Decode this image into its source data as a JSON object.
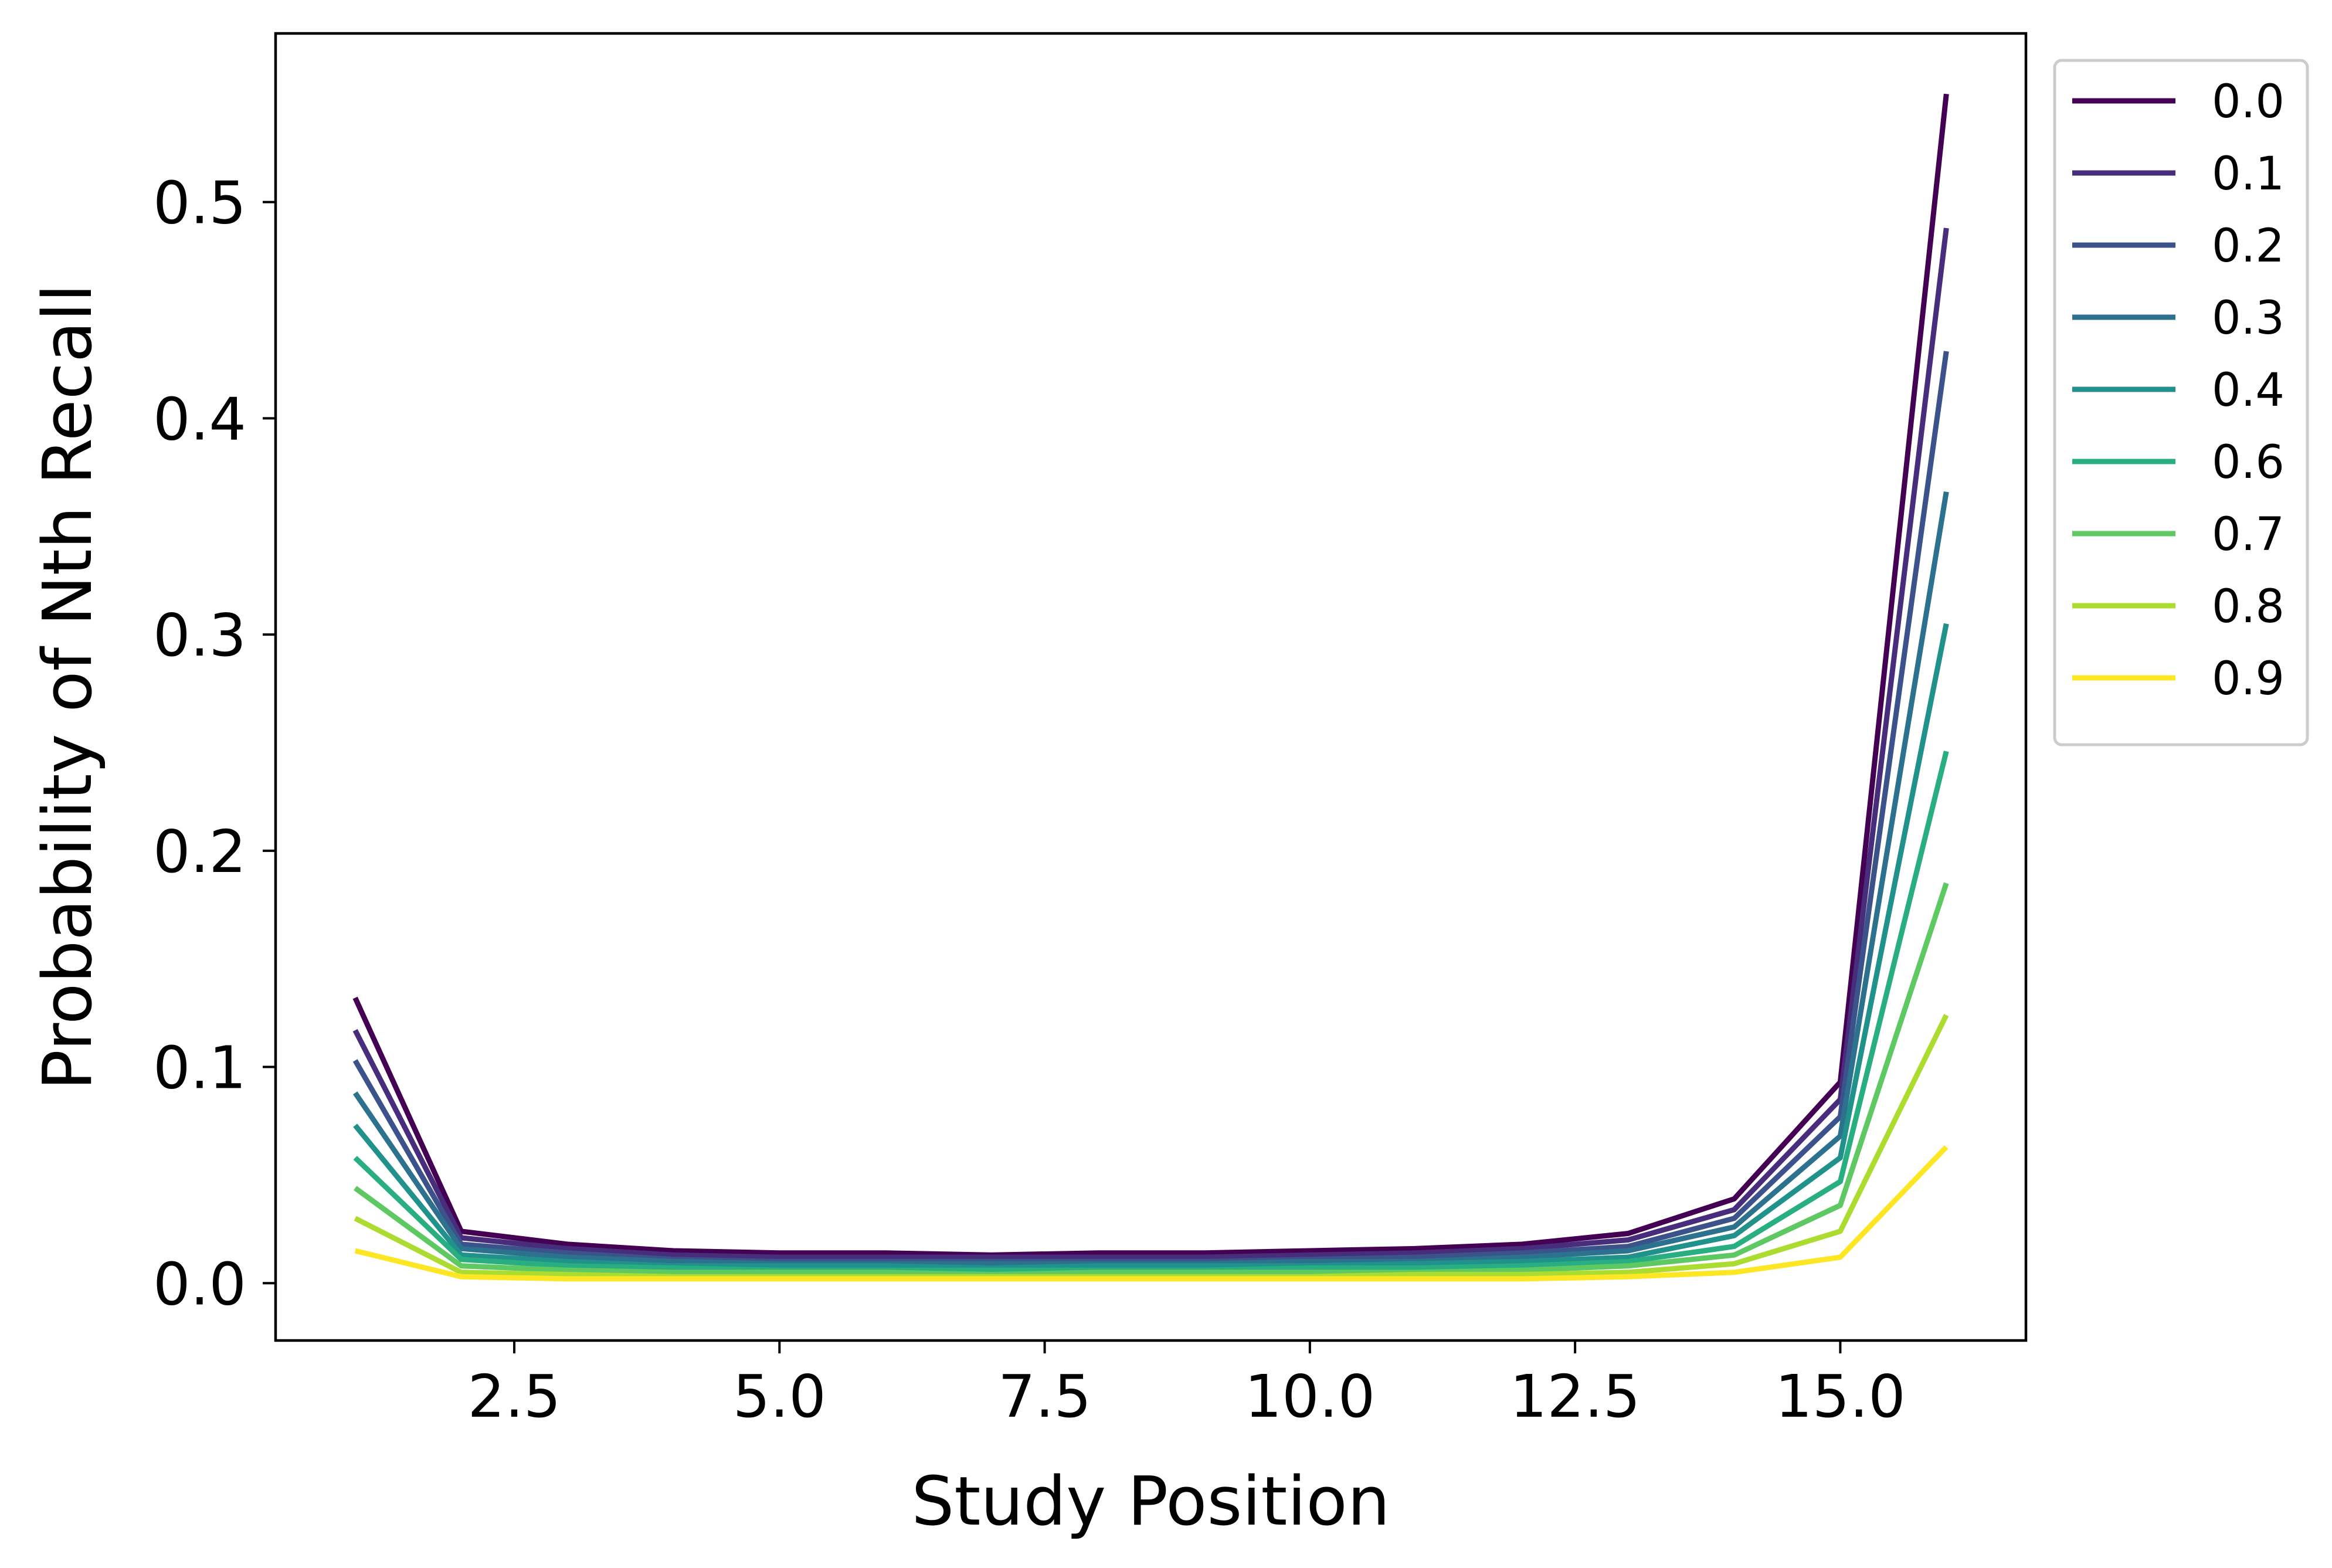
{
  "chart_data": {
    "type": "line",
    "xlabel": "Study Position",
    "ylabel": "Probability of Nth Recall",
    "xlim": [
      0.25,
      16.75
    ],
    "ylim": [
      -0.0265,
      0.578
    ],
    "xticks": [
      2.5,
      5.0,
      7.5,
      10.0,
      12.5,
      15.0
    ],
    "xtick_labels": [
      "2.5",
      "5.0",
      "7.5",
      "10.0",
      "12.5",
      "15.0"
    ],
    "yticks": [
      0.0,
      0.1,
      0.2,
      0.3,
      0.4,
      0.5
    ],
    "ytick_labels": [
      "0.0",
      "0.1",
      "0.2",
      "0.3",
      "0.4",
      "0.5"
    ],
    "grid": false,
    "legend_position": "outside upper right",
    "x": [
      1,
      2,
      3,
      4,
      5,
      6,
      7,
      8,
      9,
      10,
      11,
      12,
      13,
      14,
      15,
      16
    ],
    "series": [
      {
        "name": "0.0",
        "color": "#440154",
        "values": [
          0.132,
          0.024,
          0.018,
          0.015,
          0.014,
          0.014,
          0.013,
          0.014,
          0.014,
          0.015,
          0.016,
          0.018,
          0.023,
          0.039,
          0.093,
          0.55
        ]
      },
      {
        "name": "0.1",
        "color": "#472d7b",
        "values": [
          0.117,
          0.021,
          0.016,
          0.013,
          0.012,
          0.012,
          0.012,
          0.012,
          0.012,
          0.013,
          0.014,
          0.016,
          0.02,
          0.034,
          0.085,
          0.488
        ]
      },
      {
        "name": "0.2",
        "color": "#3b528b",
        "values": [
          0.103,
          0.018,
          0.014,
          0.011,
          0.01,
          0.01,
          0.01,
          0.01,
          0.01,
          0.011,
          0.012,
          0.014,
          0.017,
          0.03,
          0.077,
          0.431
        ]
      },
      {
        "name": "0.3",
        "color": "#2c728e",
        "values": [
          0.088,
          0.016,
          0.012,
          0.01,
          0.009,
          0.009,
          0.009,
          0.009,
          0.009,
          0.01,
          0.01,
          0.012,
          0.015,
          0.026,
          0.068,
          0.366
        ]
      },
      {
        "name": "0.4",
        "color": "#21918c",
        "values": [
          0.073,
          0.013,
          0.01,
          0.008,
          0.008,
          0.008,
          0.007,
          0.008,
          0.008,
          0.008,
          0.009,
          0.01,
          0.012,
          0.022,
          0.058,
          0.305
        ]
      },
      {
        "name": "0.6",
        "color": "#28ae80",
        "values": [
          0.058,
          0.011,
          0.008,
          0.007,
          0.006,
          0.006,
          0.006,
          0.006,
          0.006,
          0.007,
          0.007,
          0.008,
          0.01,
          0.017,
          0.047,
          0.246
        ]
      },
      {
        "name": "0.7",
        "color": "#5ec962",
        "values": [
          0.044,
          0.008,
          0.006,
          0.005,
          0.005,
          0.005,
          0.004,
          0.005,
          0.005,
          0.005,
          0.005,
          0.006,
          0.008,
          0.013,
          0.036,
          0.185
        ]
      },
      {
        "name": "0.8",
        "color": "#addc30",
        "values": [
          0.03,
          0.005,
          0.004,
          0.003,
          0.003,
          0.003,
          0.003,
          0.003,
          0.003,
          0.003,
          0.004,
          0.004,
          0.005,
          0.009,
          0.024,
          0.124
        ]
      },
      {
        "name": "0.9",
        "color": "#fde725",
        "values": [
          0.015,
          0.003,
          0.002,
          0.002,
          0.002,
          0.002,
          0.002,
          0.002,
          0.002,
          0.002,
          0.002,
          0.002,
          0.003,
          0.005,
          0.012,
          0.063
        ]
      }
    ]
  }
}
